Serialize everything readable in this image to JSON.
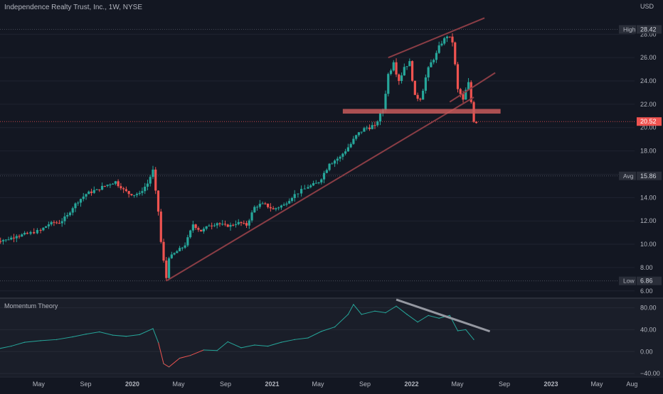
{
  "header": {
    "title": "Independence Realty Trust, Inc., 1W, NYSE",
    "currency": "USD"
  },
  "indicator": {
    "title": "Momentum Theory"
  },
  "colors": {
    "background": "#131722",
    "up": "#26a69a",
    "down": "#ef5350",
    "drawing": "#8a3d45",
    "zone": "#c85a5a",
    "momentum_line": "#26a69a",
    "momentum_down": "#ef5350",
    "trend_grey": "#9598a1",
    "text": "#b2b5be"
  },
  "chart_data": [
    {
      "type": "candlestick",
      "title": "Independence Realty Trust, Inc., 1W, NYSE",
      "unit": "USD",
      "x_labels": [
        "May",
        "Sep",
        "2020",
        "May",
        "Sep",
        "2021",
        "May",
        "Sep",
        "2022",
        "May",
        "Sep",
        "2023",
        "May",
        "Aug"
      ],
      "x_range": [
        "2019-01-01",
        "2023-09-01"
      ],
      "ylim": [
        5.5,
        29.6
      ],
      "y_ticks": [
        "6.00",
        "8.00",
        "10.00",
        "12.00",
        "14.00",
        "16.00",
        "18.00",
        "20.00",
        "22.00",
        "24.00",
        "26.00",
        "28.00"
      ],
      "y_tick_values": [
        6,
        8,
        10,
        12,
        14,
        16,
        18,
        20,
        22,
        24,
        26,
        28
      ],
      "labels": {
        "high": {
          "label": "High",
          "value": "28.42"
        },
        "last": {
          "value": "20.52"
        },
        "avg": {
          "label": "Avg",
          "value": "15.86"
        },
        "low": {
          "label": "Low",
          "value": "6.86"
        }
      },
      "closes": [
        {
          "d": "2019-01-07",
          "c": 10.3
        },
        {
          "d": "2019-02-04",
          "c": 10.4
        },
        {
          "d": "2019-03-04",
          "c": 10.7
        },
        {
          "d": "2019-04-01",
          "c": 10.9
        },
        {
          "d": "2019-05-06",
          "c": 11.2
        },
        {
          "d": "2019-06-03",
          "c": 11.9
        },
        {
          "d": "2019-06-24",
          "c": 11.8
        },
        {
          "d": "2019-07-15",
          "c": 12.5
        },
        {
          "d": "2019-08-05",
          "c": 13.5
        },
        {
          "d": "2019-09-02",
          "c": 14.3
        },
        {
          "d": "2019-09-30",
          "c": 14.7
        },
        {
          "d": "2019-10-28",
          "c": 15.1
        },
        {
          "d": "2019-11-18",
          "c": 15.4
        },
        {
          "d": "2019-12-02",
          "c": 14.8
        },
        {
          "d": "2019-12-30",
          "c": 14.2
        },
        {
          "d": "2020-01-20",
          "c": 14.4
        },
        {
          "d": "2020-02-10",
          "c": 15.2
        },
        {
          "d": "2020-02-24",
          "c": 16.4
        },
        {
          "d": "2020-03-02",
          "c": 14.6
        },
        {
          "d": "2020-03-09",
          "c": 12.8
        },
        {
          "d": "2020-03-16",
          "c": 10.2
        },
        {
          "d": "2020-03-23",
          "c": 8.6
        },
        {
          "d": "2020-03-30",
          "c": 7.1
        },
        {
          "d": "2020-04-06",
          "c": 8.8
        },
        {
          "d": "2020-04-27",
          "c": 9.4
        },
        {
          "d": "2020-05-18",
          "c": 9.9
        },
        {
          "d": "2020-06-08",
          "c": 11.7
        },
        {
          "d": "2020-06-29",
          "c": 11.1
        },
        {
          "d": "2020-07-20",
          "c": 11.6
        },
        {
          "d": "2020-08-10",
          "c": 11.8
        },
        {
          "d": "2020-09-07",
          "c": 11.5
        },
        {
          "d": "2020-10-05",
          "c": 11.9
        },
        {
          "d": "2020-10-26",
          "c": 11.6
        },
        {
          "d": "2020-11-16",
          "c": 13.2
        },
        {
          "d": "2020-12-07",
          "c": 13.5
        },
        {
          "d": "2021-01-04",
          "c": 13.0
        },
        {
          "d": "2021-02-01",
          "c": 13.4
        },
        {
          "d": "2021-03-01",
          "c": 14.3
        },
        {
          "d": "2021-04-05",
          "c": 14.9
        },
        {
          "d": "2021-05-03",
          "c": 15.3
        },
        {
          "d": "2021-05-31",
          "c": 16.9
        },
        {
          "d": "2021-06-28",
          "c": 17.5
        },
        {
          "d": "2021-07-26",
          "c": 18.6
        },
        {
          "d": "2021-08-16",
          "c": 19.6
        },
        {
          "d": "2021-09-06",
          "c": 20.0
        },
        {
          "d": "2021-09-27",
          "c": 20.2
        },
        {
          "d": "2021-10-18",
          "c": 21.5
        },
        {
          "d": "2021-11-01",
          "c": 24.6
        },
        {
          "d": "2021-11-15",
          "c": 25.6
        },
        {
          "d": "2021-11-29",
          "c": 24.0
        },
        {
          "d": "2021-12-13",
          "c": 25.2
        },
        {
          "d": "2021-12-27",
          "c": 25.7
        },
        {
          "d": "2022-01-10",
          "c": 22.8
        },
        {
          "d": "2022-01-24",
          "c": 22.4
        },
        {
          "d": "2022-02-07",
          "c": 24.3
        },
        {
          "d": "2022-02-21",
          "c": 25.6
        },
        {
          "d": "2022-03-07",
          "c": 26.4
        },
        {
          "d": "2022-03-21",
          "c": 27.2
        },
        {
          "d": "2022-04-04",
          "c": 27.8
        },
        {
          "d": "2022-04-18",
          "c": 27.3
        },
        {
          "d": "2022-05-02",
          "c": 23.3
        },
        {
          "d": "2022-05-16",
          "c": 22.4
        },
        {
          "d": "2022-05-30",
          "c": 23.9
        },
        {
          "d": "2022-06-13",
          "c": 20.5
        }
      ],
      "annotations": [
        {
          "type": "trendline",
          "from": [
            "2020-03-30",
            6.86
          ],
          "to": [
            "2022-06-13",
            22.6
          ]
        },
        {
          "type": "trendline",
          "from": [
            "2021-11-01",
            26.0
          ],
          "to": [
            "2022-07-11",
            29.4
          ]
        },
        {
          "type": "trendline",
          "from": [
            "2022-04-11",
            22.2
          ],
          "to": [
            "2022-08-08",
            24.7
          ]
        },
        {
          "type": "zone",
          "from": [
            "2021-07-05",
            21.6
          ],
          "to": [
            "2022-08-22",
            21.2
          ]
        }
      ]
    },
    {
      "type": "line",
      "title": "Momentum Theory",
      "ylim": [
        -45,
        95
      ],
      "y_ticks": [
        "−40.00",
        "0.00",
        "40.00",
        "80.00"
      ],
      "y_tick_values": [
        -40,
        0,
        40,
        80
      ],
      "series": [
        {
          "d": "2019-01-07",
          "v": 4
        },
        {
          "d": "2019-02-18",
          "v": 10
        },
        {
          "d": "2019-03-25",
          "v": 17
        },
        {
          "d": "2019-05-06",
          "v": 20
        },
        {
          "d": "2019-06-17",
          "v": 22
        },
        {
          "d": "2019-07-29",
          "v": 27
        },
        {
          "d": "2019-09-02",
          "v": 32
        },
        {
          "d": "2019-10-07",
          "v": 36
        },
        {
          "d": "2019-11-11",
          "v": 30
        },
        {
          "d": "2019-12-16",
          "v": 28
        },
        {
          "d": "2020-01-20",
          "v": 31
        },
        {
          "d": "2020-02-24",
          "v": 42
        },
        {
          "d": "2020-03-09",
          "v": 17
        },
        {
          "d": "2020-03-23",
          "v": -22
        },
        {
          "d": "2020-04-06",
          "v": -28
        },
        {
          "d": "2020-05-04",
          "v": -12
        },
        {
          "d": "2020-06-01",
          "v": -7
        },
        {
          "d": "2020-07-06",
          "v": 3
        },
        {
          "d": "2020-08-10",
          "v": 2
        },
        {
          "d": "2020-09-07",
          "v": 18
        },
        {
          "d": "2020-10-12",
          "v": 7
        },
        {
          "d": "2020-11-16",
          "v": 12
        },
        {
          "d": "2020-12-21",
          "v": 10
        },
        {
          "d": "2021-01-25",
          "v": 17
        },
        {
          "d": "2021-03-01",
          "v": 22
        },
        {
          "d": "2021-04-05",
          "v": 25
        },
        {
          "d": "2021-05-10",
          "v": 37
        },
        {
          "d": "2021-06-14",
          "v": 45
        },
        {
          "d": "2021-07-19",
          "v": 68
        },
        {
          "d": "2021-08-02",
          "v": 86
        },
        {
          "d": "2021-08-23",
          "v": 68
        },
        {
          "d": "2021-09-27",
          "v": 74
        },
        {
          "d": "2021-10-25",
          "v": 71
        },
        {
          "d": "2021-11-22",
          "v": 83
        },
        {
          "d": "2021-12-20",
          "v": 68
        },
        {
          "d": "2022-01-17",
          "v": 54
        },
        {
          "d": "2022-02-14",
          "v": 66
        },
        {
          "d": "2022-03-14",
          "v": 61
        },
        {
          "d": "2022-04-11",
          "v": 66
        },
        {
          "d": "2022-05-02",
          "v": 38
        },
        {
          "d": "2022-05-23",
          "v": 40
        },
        {
          "d": "2022-06-13",
          "v": 22
        }
      ],
      "annotations": [
        {
          "type": "trendline",
          "from": [
            "2021-11-22",
            95
          ],
          "to": [
            "2022-07-25",
            37
          ]
        }
      ]
    }
  ]
}
